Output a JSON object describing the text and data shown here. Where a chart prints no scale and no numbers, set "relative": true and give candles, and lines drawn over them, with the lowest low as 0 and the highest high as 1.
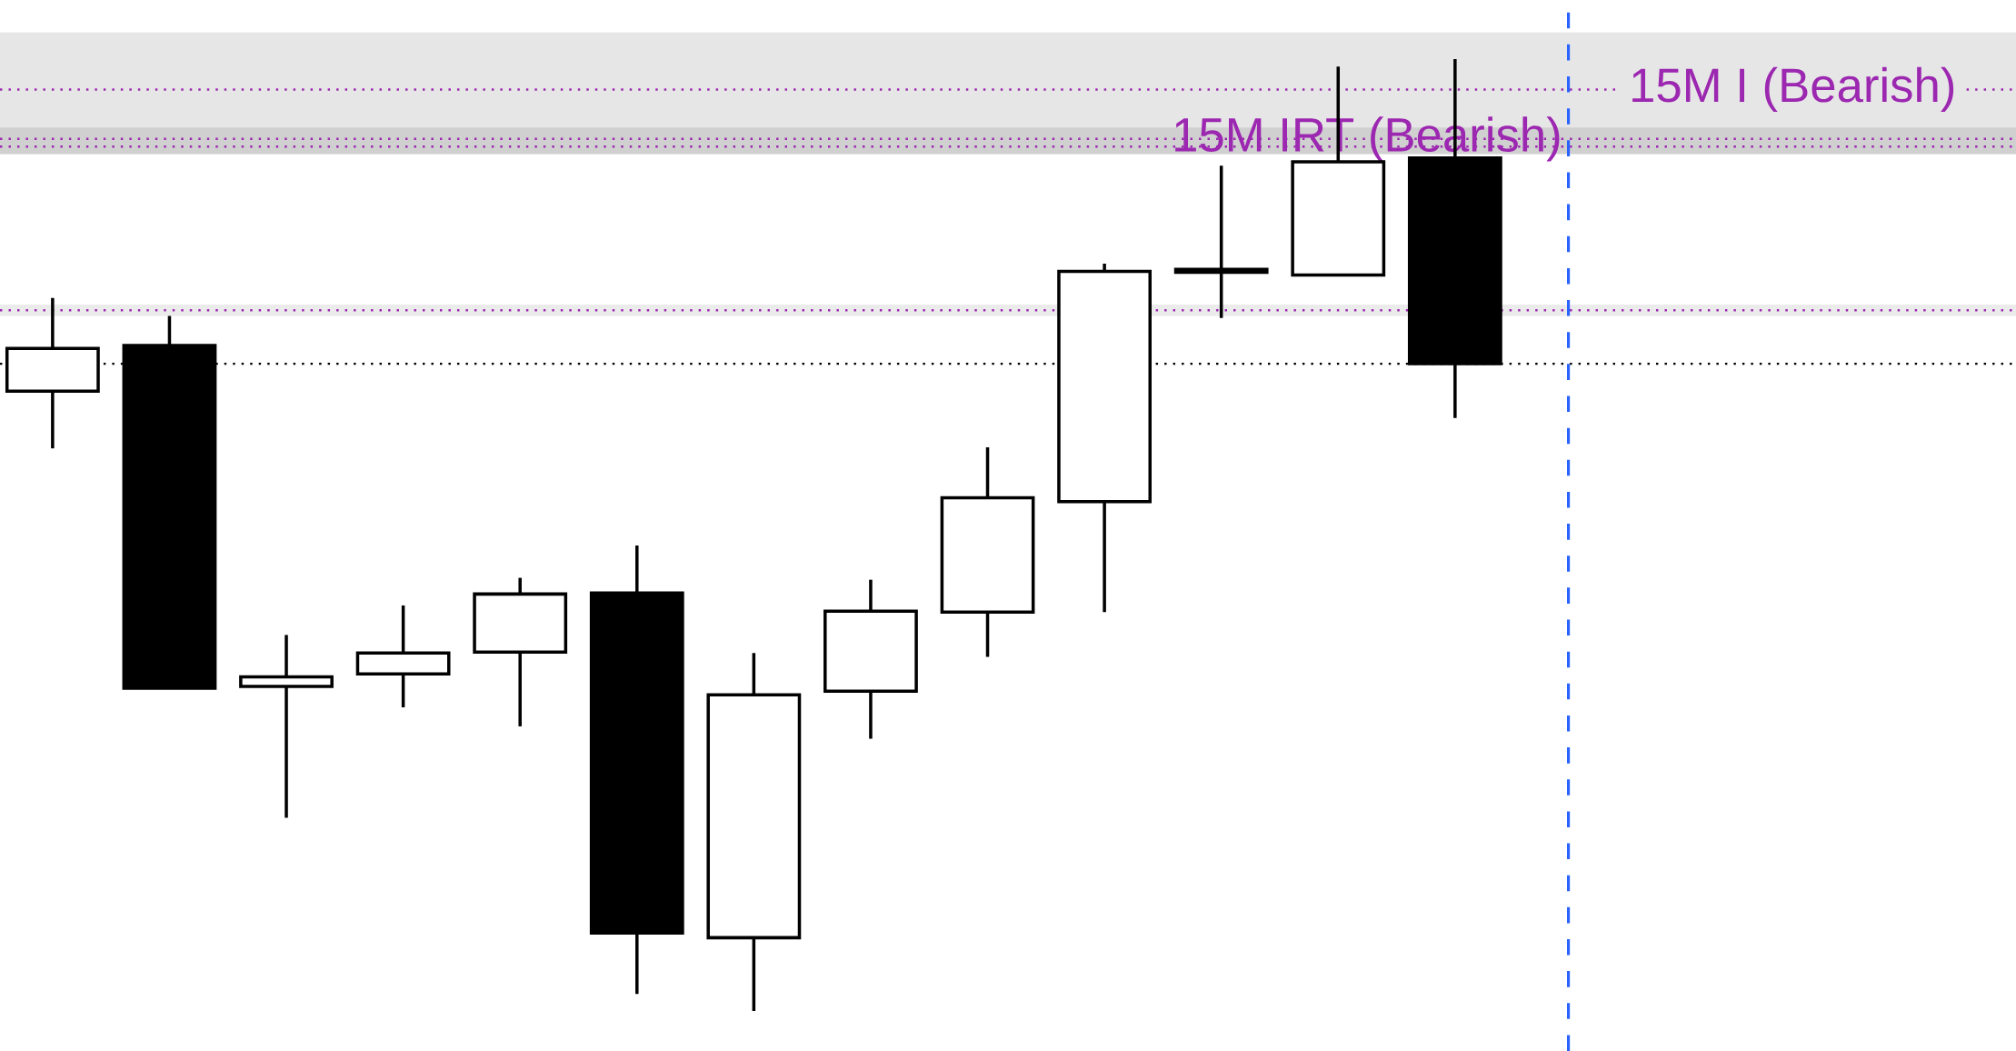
{
  "chart_data": {
    "type": "candlestick",
    "relative": true,
    "categories": [
      null,
      null,
      null,
      null,
      null,
      null,
      null,
      null,
      null,
      null,
      null,
      null,
      null
    ],
    "ohlc": [
      [
        0.651,
        0.749,
        0.591,
        0.696
      ],
      [
        0.699,
        0.73,
        0.339,
        0.339
      ],
      [
        0.341,
        0.395,
        0.203,
        0.351
      ],
      [
        0.354,
        0.426,
        0.319,
        0.376
      ],
      [
        0.377,
        0.455,
        0.299,
        0.438
      ],
      [
        0.439,
        0.489,
        0.018,
        0.082
      ],
      [
        0.077,
        0.376,
        0.0,
        0.332
      ],
      [
        0.336,
        0.453,
        0.286,
        0.42
      ],
      [
        0.419,
        0.592,
        0.372,
        0.539
      ],
      [
        0.535,
        0.785,
        0.419,
        0.777
      ],
      [
        0.776,
        0.888,
        0.728,
        0.779
      ],
      [
        0.773,
        0.992,
        0.773,
        0.892
      ],
      [
        0.896,
        1.0,
        0.623,
        0.68
      ]
    ],
    "bands": [
      {
        "axis": "y",
        "from": 0.905,
        "to": 1.028,
        "color": "#e6e6e6"
      },
      {
        "axis": "y",
        "from": 0.9,
        "to": 0.928,
        "color": "#d0d0d0"
      },
      {
        "axis": "y",
        "from": 0.73,
        "to": 0.742,
        "color": "#ebebeb"
      }
    ],
    "ref_lines": [
      {
        "axis": "y",
        "value": 0.968,
        "label": "15M I (Bearish)",
        "color": "#9c27b0",
        "line_style": "dotted"
      },
      {
        "axis": "y",
        "value": 0.916,
        "label": "15M IRT (Bearish)",
        "color": "#9c27b0",
        "line_style": "dotted"
      },
      {
        "axis": "y",
        "value": 0.908,
        "color": "#9c27b0",
        "line_style": "dotted"
      },
      {
        "axis": "y",
        "value": 0.736,
        "color": "#9c27b0",
        "line_style": "dotted"
      },
      {
        "axis": "y",
        "value": 0.68,
        "color": "#000000",
        "line_style": "dotted"
      }
    ]
  }
}
